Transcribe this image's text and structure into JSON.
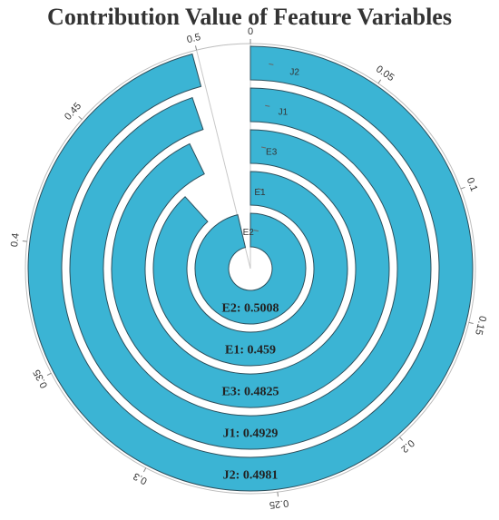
{
  "chart_data": {
    "type": "radial-bar",
    "title": "Contribution Value of Feature Variables",
    "categories": [
      "E2",
      "E1",
      "E3",
      "J1",
      "J2"
    ],
    "values": [
      0.5008,
      0.459,
      0.4825,
      0.4929,
      0.4981
    ],
    "data_labels": [
      "E2: 0.5008",
      "E1: 0.459",
      "E3: 0.4825",
      "J1: 0.4929",
      "J2: 0.4981"
    ],
    "angular_axis": {
      "range": [
        0,
        0.52
      ],
      "ticks": [
        0,
        0.05,
        0.1,
        0.15,
        0.2,
        0.25,
        0.3,
        0.35,
        0.4,
        0.45,
        0.5
      ],
      "tick_labels": [
        "0",
        "0.05",
        "0.1",
        "0.15",
        "0.2",
        "0.25",
        "0.3",
        "0.35",
        "0.4",
        "0.45",
        "0.5"
      ],
      "direction": "clockwise"
    },
    "bar_color": "#3bb4d4",
    "grid": true
  }
}
